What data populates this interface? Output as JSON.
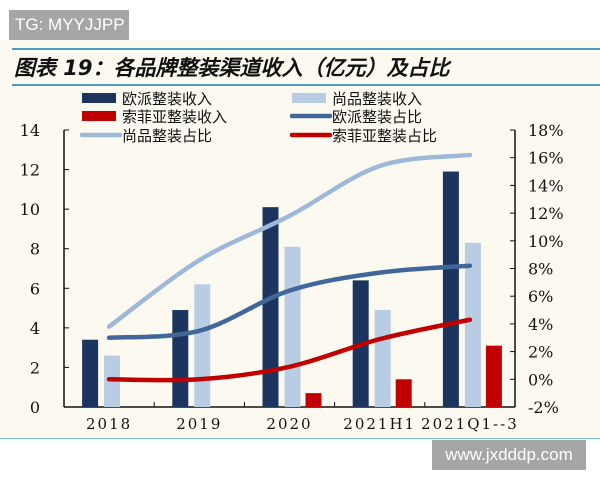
{
  "watermark_top": "TG: MYYJJPP",
  "watermark_bottom": "www.jxdddp.com",
  "chart_data": {
    "type": "bar+line",
    "title": "图表 19：各品牌整装渠道收入（亿元）及占比",
    "categories": [
      "2018",
      "2019",
      "2020",
      "2021H1",
      "2021Q1--3"
    ],
    "y_left": {
      "range": [
        0,
        14
      ],
      "ticks": [
        "0",
        "2",
        "4",
        "6",
        "8",
        "10",
        "12",
        "14"
      ]
    },
    "y_right": {
      "range": [
        -2,
        18
      ],
      "ticks": [
        "-2%",
        "0%",
        "2%",
        "4%",
        "6%",
        "8%",
        "10%",
        "12%",
        "14%",
        "16%",
        "18%"
      ]
    },
    "grid": false,
    "legend_placement": "top",
    "bar_series": [
      {
        "name": "欧派整装收入",
        "color": "#1b355e",
        "values": [
          3.4,
          4.9,
          10.1,
          6.4,
          11.9
        ]
      },
      {
        "name": "尚品整装收入",
        "color": "#b8cce4",
        "values": [
          2.6,
          6.2,
          8.1,
          4.9,
          8.3
        ]
      },
      {
        "name": "索菲亚整装收入",
        "color": "#c00000",
        "values": [
          null,
          null,
          0.7,
          1.4,
          3.1
        ]
      }
    ],
    "line_series": [
      {
        "name": "欧派整装占比",
        "color": "#41679a",
        "values": [
          3.0,
          3.5,
          6.4,
          7.7,
          8.2
        ]
      },
      {
        "name": "尚品整装占比",
        "color": "#9db8d9",
        "values": [
          3.8,
          8.6,
          11.8,
          15.4,
          16.2
        ]
      },
      {
        "name": "索菲亚整装占比",
        "color": "#c00000",
        "values": [
          0.0,
          0.0,
          0.9,
          2.9,
          4.3
        ]
      }
    ]
  }
}
